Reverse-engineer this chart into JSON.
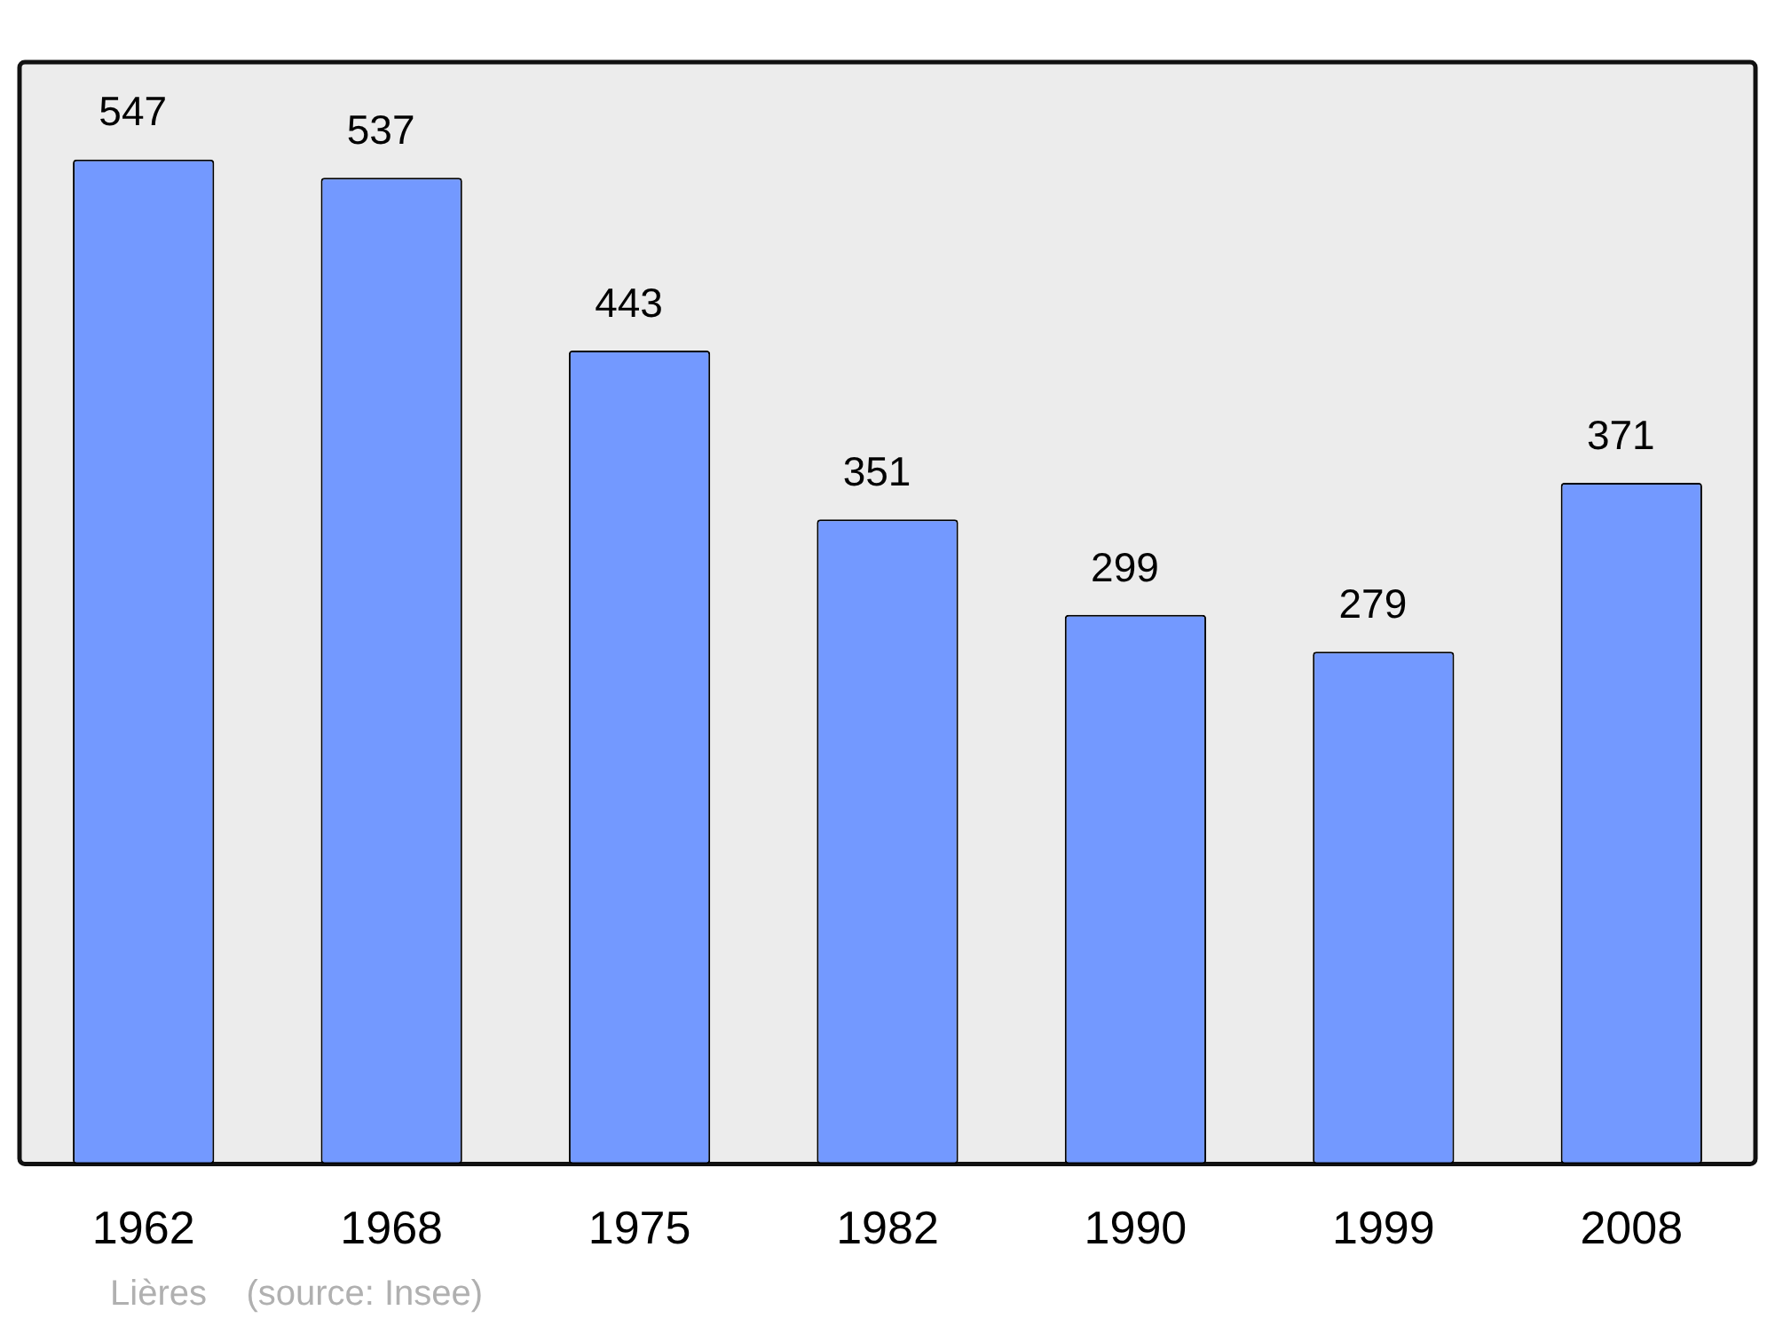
{
  "chart_data": {
    "type": "bar",
    "categories": [
      "1962",
      "1968",
      "1975",
      "1982",
      "1990",
      "1999",
      "2008"
    ],
    "values": [
      547,
      537,
      443,
      351,
      299,
      279,
      371
    ],
    "color": "#7399ff",
    "data_labels": true,
    "grid": false,
    "legend": false,
    "tick_labels": "x",
    "annotations": [
      "Lières    (source: Insee)"
    ]
  }
}
